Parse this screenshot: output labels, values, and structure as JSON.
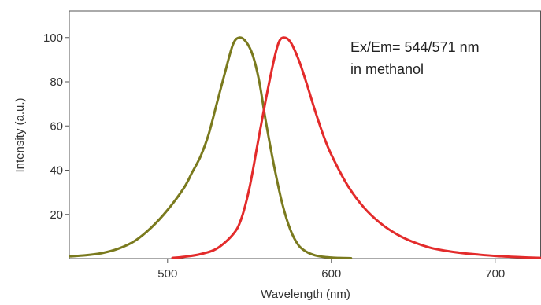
{
  "chart_data": {
    "type": "line",
    "title": "",
    "xlabel": "Wavelength (nm)",
    "ylabel": "Intensity (a.u.)",
    "xlim": [
      440,
      728
    ],
    "ylim": [
      0,
      112
    ],
    "x_ticks": [
      500,
      600,
      700
    ],
    "y_ticks": [
      20,
      40,
      60,
      80,
      100
    ],
    "grid": false,
    "legend": "none",
    "annotation": {
      "line1": "Ex/Em= 544/571 nm",
      "line2": "in methanol"
    },
    "series": [
      {
        "color": "#7a7a1e",
        "x": [
          440,
          450,
          460,
          470,
          480,
          490,
          500,
          510,
          515,
          520,
          525,
          530,
          535,
          540,
          544,
          548,
          552,
          556,
          560,
          565,
          570,
          575,
          580,
          585,
          590,
          595,
          600,
          605,
          612
        ],
        "y": [
          1,
          1.5,
          2.5,
          4.5,
          8,
          14,
          22,
          32,
          39,
          46,
          56,
          70,
          84,
          97,
          100,
          98,
          92,
          80,
          62,
          42,
          25,
          13,
          6,
          3,
          1.5,
          0.8,
          0.5,
          0.3,
          0.2
        ]
      },
      {
        "color": "#e32b2b",
        "x": [
          503,
          510,
          520,
          530,
          540,
          545,
          550,
          555,
          560,
          565,
          568,
          571,
          575,
          580,
          585,
          590,
          595,
          600,
          610,
          620,
          630,
          640,
          650,
          660,
          670,
          680,
          690,
          700,
          710,
          720,
          728
        ],
        "y": [
          0.3,
          0.8,
          2,
          4.5,
          11,
          18,
          32,
          52,
          72,
          90,
          98,
          100,
          98,
          90,
          79,
          67,
          56,
          47,
          33,
          23,
          16,
          11,
          7.5,
          5,
          3.5,
          2.5,
          1.8,
          1.2,
          0.8,
          0.5,
          0.3
        ]
      }
    ]
  }
}
